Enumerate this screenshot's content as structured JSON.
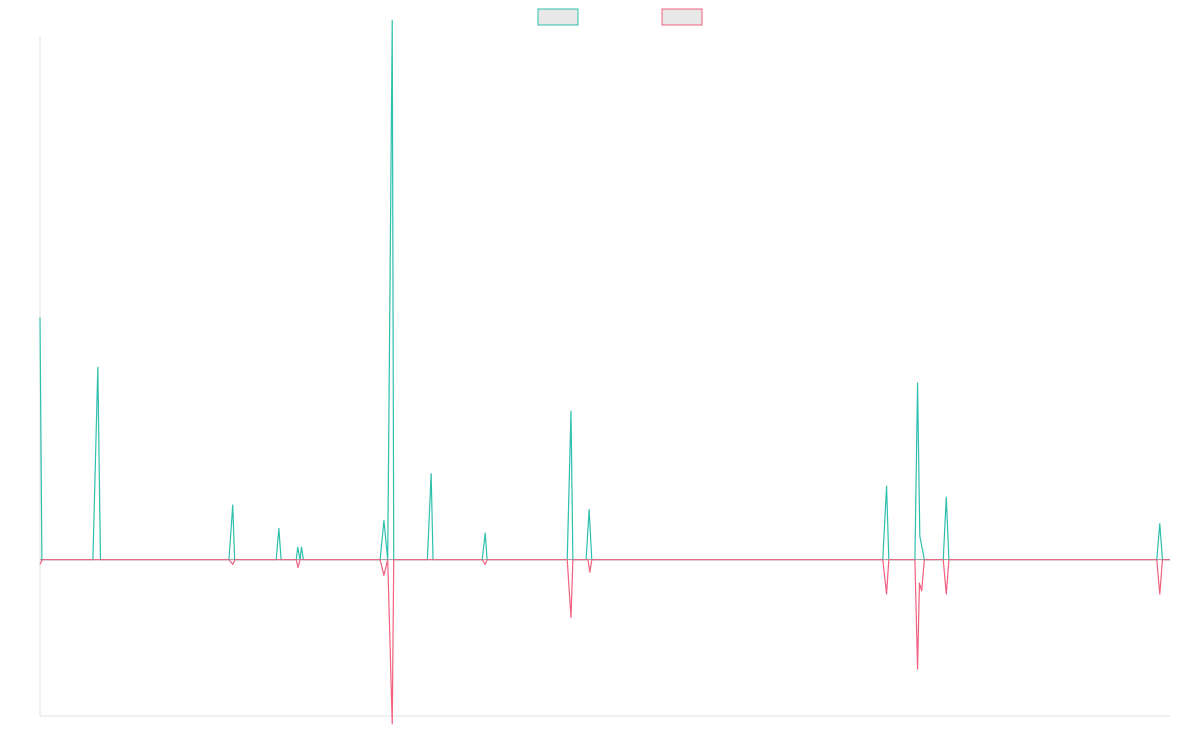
{
  "chart_data": {
    "type": "line",
    "title": "",
    "xlabel": "",
    "ylabel": "",
    "legend_position": "top",
    "grid": false,
    "ylim": [
      -100,
      335
    ],
    "x": [
      0,
      1,
      2,
      3,
      4,
      5,
      6,
      7,
      8,
      9,
      10,
      11,
      12,
      13,
      14,
      15,
      16,
      17,
      18,
      19,
      20,
      21,
      22,
      23,
      24,
      25,
      26,
      27,
      28,
      29,
      30,
      31,
      32,
      33,
      34,
      35,
      36,
      37,
      38,
      39,
      40,
      41,
      42,
      43,
      44,
      45,
      46,
      47,
      48,
      49,
      50,
      51,
      52,
      53,
      54,
      55,
      56,
      57,
      58,
      59,
      60,
      61,
      62,
      63,
      64,
      65,
      66,
      67,
      68,
      69,
      70,
      71,
      72,
      73,
      74,
      75,
      76,
      77,
      78,
      79,
      80,
      81,
      82,
      83,
      84,
      85,
      86,
      87,
      88,
      89,
      90,
      91,
      92,
      93,
      94,
      95,
      96,
      97,
      98,
      99,
      100,
      101,
      102,
      103,
      104,
      105,
      106,
      107,
      108,
      109,
      110,
      111,
      112,
      113,
      114,
      115,
      116,
      117,
      118,
      119,
      120,
      121,
      122,
      123,
      124,
      125,
      126,
      127,
      128,
      129,
      130,
      131,
      132,
      133,
      134,
      135,
      136,
      137,
      138,
      139,
      140,
      141,
      142,
      143,
      144,
      145,
      146,
      147,
      148,
      149,
      150,
      151,
      152,
      153,
      154,
      155,
      156,
      157,
      158,
      159,
      160,
      161,
      162,
      163,
      164,
      165,
      166,
      167,
      168,
      169,
      170,
      171,
      172,
      173,
      174,
      175,
      176,
      177,
      178,
      179,
      180,
      181,
      182,
      183,
      184,
      185,
      186,
      187,
      188,
      189,
      190,
      191,
      192,
      193,
      194,
      195,
      196,
      197,
      198,
      199,
      200,
      201,
      202,
      203,
      204,
      205,
      206,
      207,
      208,
      209,
      210,
      211,
      212,
      213,
      214,
      215,
      216,
      217,
      218,
      219,
      220,
      221,
      222,
      223,
      224,
      225,
      226,
      227,
      228,
      229,
      230,
      231,
      232,
      233,
      234,
      235,
      236,
      237,
      238,
      239,
      240,
      241,
      242,
      243,
      244,
      245,
      246,
      247,
      248,
      249,
      250,
      251,
      252,
      253,
      254,
      255,
      256,
      257,
      258,
      259,
      260,
      261,
      262,
      263,
      264,
      265,
      266,
      267,
      268,
      269,
      270,
      271,
      272,
      273,
      274,
      275,
      276,
      277,
      278,
      279,
      280,
      281,
      282,
      283,
      284,
      285,
      286,
      287,
      288,
      289,
      290,
      291,
      292,
      293,
      294,
      295,
      296,
      297,
      298,
      299
    ],
    "series": [
      {
        "name": "",
        "color": "#2ebfad",
        "fill": "#e8e8e8",
        "points": [
          [
            0,
            155
          ],
          [
            0.5,
            0
          ],
          [
            14,
            0
          ],
          [
            15.3,
            123
          ],
          [
            16,
            0
          ],
          [
            50,
            0
          ],
          [
            51,
            35
          ],
          [
            51.5,
            0
          ],
          [
            62.5,
            0
          ],
          [
            63.2,
            20
          ],
          [
            63.8,
            0
          ],
          [
            67.8,
            0
          ],
          [
            68.2,
            8
          ],
          [
            68.8,
            0
          ],
          [
            69.2,
            8
          ],
          [
            69.7,
            0
          ],
          [
            90,
            0
          ],
          [
            91,
            25
          ],
          [
            92,
            0
          ],
          [
            93.2,
            345
          ],
          [
            93.6,
            0
          ],
          [
            102.5,
            0
          ],
          [
            103.5,
            55
          ],
          [
            104,
            0
          ],
          [
            117,
            0
          ],
          [
            117.8,
            17
          ],
          [
            118.3,
            0
          ],
          [
            139.5,
            0
          ],
          [
            140.5,
            95
          ],
          [
            141,
            0
          ],
          [
            144.5,
            0
          ],
          [
            145.3,
            32
          ],
          [
            146,
            0
          ],
          [
            223,
            0
          ],
          [
            224,
            47
          ],
          [
            224.6,
            0
          ],
          [
            231.5,
            0
          ],
          [
            232.2,
            113
          ],
          [
            232.8,
            15
          ],
          [
            234,
            0
          ],
          [
            239,
            0
          ],
          [
            239.8,
            40
          ],
          [
            240.5,
            0
          ],
          [
            295.5,
            0
          ],
          [
            296.3,
            23
          ],
          [
            297,
            0
          ],
          [
            299,
            0
          ]
        ]
      },
      {
        "name": "",
        "color": "#f0607f",
        "fill": "#e8e8e8",
        "points": [
          [
            0,
            -3
          ],
          [
            0.6,
            0
          ],
          [
            50,
            0
          ],
          [
            51,
            -3
          ],
          [
            51.6,
            0
          ],
          [
            67.8,
            0
          ],
          [
            68.3,
            -5
          ],
          [
            68.8,
            0
          ],
          [
            90,
            0
          ],
          [
            91,
            -10
          ],
          [
            92,
            0
          ],
          [
            93.2,
            -105
          ],
          [
            93.6,
            0
          ],
          [
            117,
            0
          ],
          [
            117.8,
            -3
          ],
          [
            118.3,
            0
          ],
          [
            139.5,
            0
          ],
          [
            140.5,
            -37
          ],
          [
            141,
            0
          ],
          [
            145,
            0
          ],
          [
            145.5,
            -8
          ],
          [
            146,
            0
          ],
          [
            223,
            0
          ],
          [
            224,
            -22
          ],
          [
            224.6,
            0
          ],
          [
            231.5,
            0
          ],
          [
            232.2,
            -70
          ],
          [
            232.7,
            -15
          ],
          [
            233.3,
            -20
          ],
          [
            234,
            0
          ],
          [
            239,
            0
          ],
          [
            239.8,
            -22
          ],
          [
            240.5,
            0
          ],
          [
            295.5,
            0
          ],
          [
            296.3,
            -22
          ],
          [
            297,
            0
          ],
          [
            299,
            0
          ]
        ]
      }
    ]
  }
}
